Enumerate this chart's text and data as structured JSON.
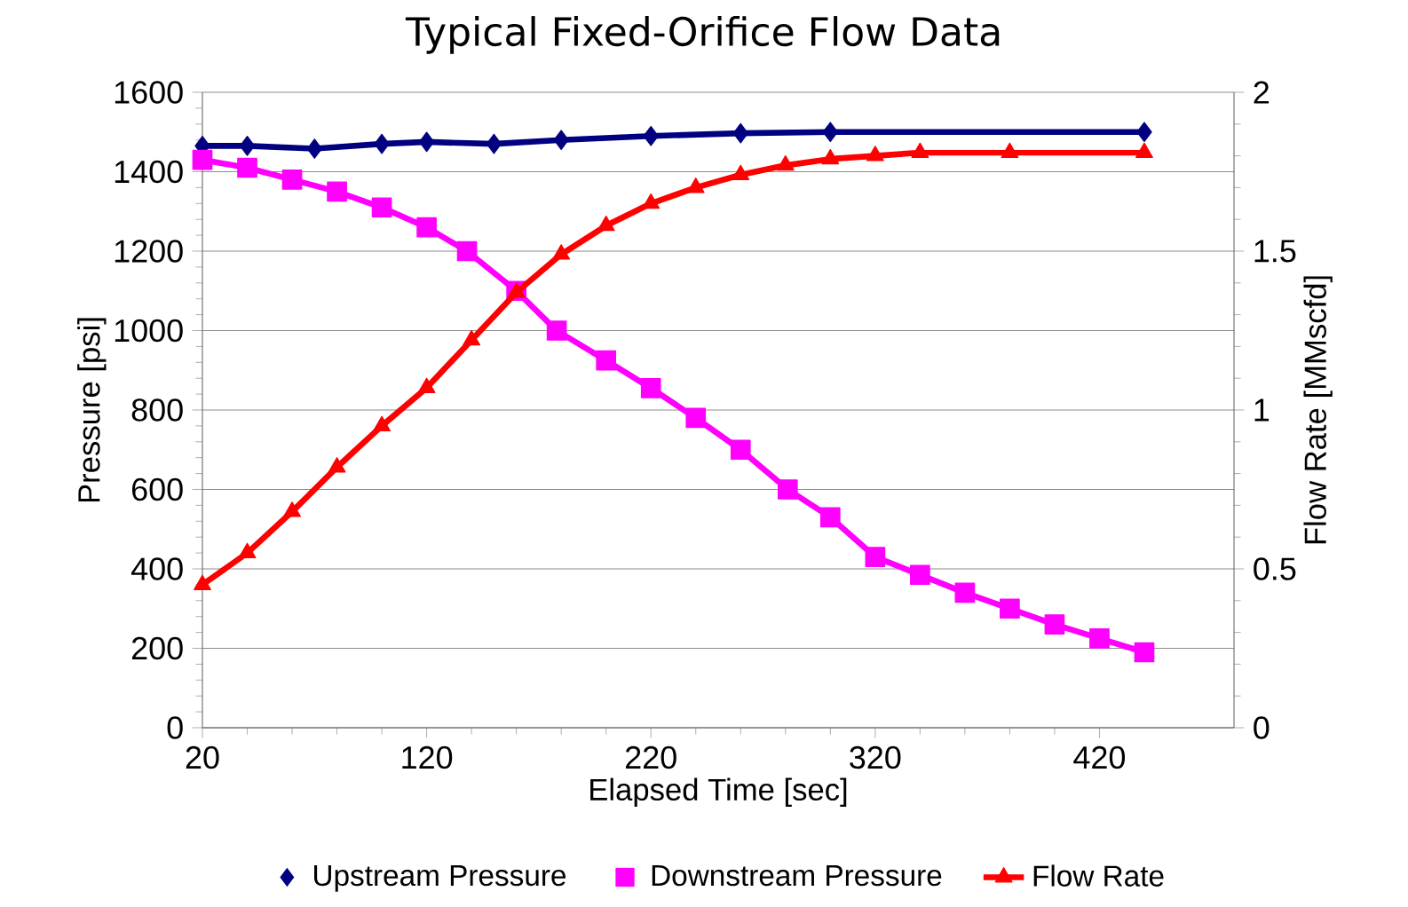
{
  "chart_data": {
    "type": "line",
    "title": "Typical Fixed-Orifice Flow Data",
    "xlabel": "Elapsed Time [sec]",
    "ylabel": "Pressure [psi]",
    "y2label": "Flow Rate [MMscfd]",
    "xlim": [
      20,
      480
    ],
    "xticks": [
      20,
      120,
      220,
      320,
      420
    ],
    "ylim": [
      0,
      1600
    ],
    "yticks": [
      0,
      200,
      400,
      600,
      800,
      1000,
      1200,
      1400,
      1600
    ],
    "y2lim": [
      0,
      2
    ],
    "y2ticks": [
      0,
      0.5,
      1,
      1.5,
      2
    ],
    "grid": "y",
    "legend": "bottom",
    "line_style": "solid",
    "series": [
      {
        "name": "Upstream Pressure",
        "color": "#000080",
        "marker": "diamond",
        "x": [
          20,
          40,
          70,
          100,
          120,
          150,
          180,
          220,
          260,
          300,
          440
        ],
        "values": [
          1465,
          1465,
          1458,
          1470,
          1475,
          1470,
          1480,
          1490,
          1497,
          1500,
          1500
        ]
      },
      {
        "name": "Downstream Pressure",
        "color": "#ff00ff",
        "marker": "square",
        "x": [
          20,
          40,
          60,
          80,
          100,
          120,
          138,
          160,
          178,
          200,
          220,
          240,
          260,
          281,
          300,
          320,
          340,
          360,
          380,
          400,
          420,
          440
        ],
        "values": [
          1430,
          1410,
          1380,
          1350,
          1310,
          1260,
          1200,
          1100,
          1000,
          925,
          855,
          780,
          700,
          600,
          530,
          430,
          385,
          340,
          300,
          260,
          225,
          190
        ]
      },
      {
        "name": "Flow Rate",
        "color": "#ff0000",
        "marker": "triangle",
        "axis": "y2",
        "x": [
          20,
          40,
          60,
          80,
          100,
          120,
          140,
          160,
          180,
          200,
          220,
          240,
          260,
          280,
          300,
          320,
          340,
          380,
          440
        ],
        "values": [
          0.45,
          0.55,
          0.68,
          0.82,
          0.95,
          1.07,
          1.22,
          1.37,
          1.49,
          1.58,
          1.65,
          1.7,
          1.74,
          1.77,
          1.79,
          1.8,
          1.81,
          1.81,
          1.81
        ]
      }
    ]
  }
}
